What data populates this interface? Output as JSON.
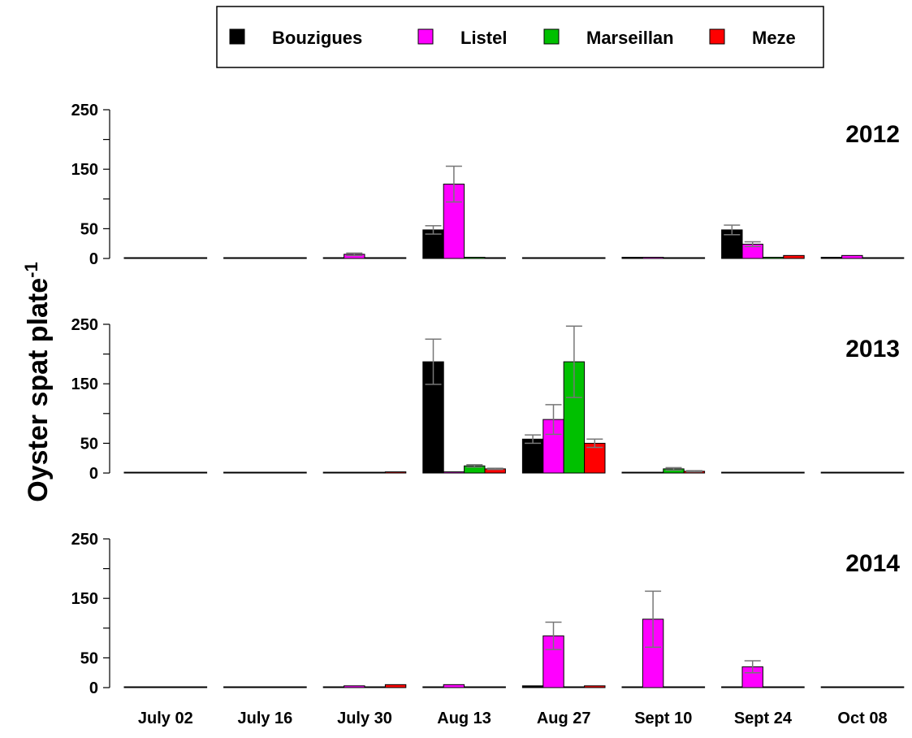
{
  "chart_data": {
    "type": "bar",
    "ylabel": "Oyster spat plate",
    "ylabel_superscript": "-1",
    "categories": [
      "July 02",
      "July 16",
      "July 30",
      "Aug 13",
      "Aug 27",
      "Sept 10",
      "Sept 24",
      "Oct 08"
    ],
    "legend": {
      "placement": "top",
      "entries": [
        {
          "name": "Bouzigues",
          "color": "#000000"
        },
        {
          "name": "Listel",
          "color": "#ff00ff"
        },
        {
          "name": "Marseillan",
          "color": "#00c000"
        },
        {
          "name": "Meze",
          "color": "#ff0000"
        }
      ]
    },
    "yticks": [
      "0",
      "50",
      "150",
      "250"
    ],
    "ylim": [
      0,
      250
    ],
    "panels": [
      {
        "year": "2012",
        "series": [
          {
            "name": "Bouzigues",
            "values": [
              0,
              0,
              0,
              48,
              0,
              2,
              48,
              2
            ],
            "errors": [
              0,
              0,
              0,
              7,
              0,
              0,
              8,
              0
            ]
          },
          {
            "name": "Listel",
            "values": [
              0,
              0,
              7,
              125,
              0,
              2,
              24,
              5
            ],
            "errors": [
              0,
              0,
              2,
              30,
              0,
              0,
              4,
              0
            ]
          },
          {
            "name": "Marseillan",
            "values": [
              0,
              0,
              0,
              2,
              0,
              0,
              2,
              0
            ],
            "errors": [
              0,
              0,
              0,
              0,
              0,
              0,
              0,
              0
            ]
          },
          {
            "name": "Meze",
            "values": [
              0,
              0,
              0,
              0,
              0,
              0,
              5,
              0
            ],
            "errors": [
              0,
              0,
              0,
              0,
              0,
              0,
              0,
              0
            ]
          }
        ]
      },
      {
        "year": "2013",
        "series": [
          {
            "name": "Bouzigues",
            "values": [
              0,
              0,
              1,
              187,
              57,
              0,
              0,
              0
            ],
            "errors": [
              0,
              0,
              0,
              38,
              7,
              0,
              0,
              0
            ]
          },
          {
            "name": "Listel",
            "values": [
              0,
              0,
              0,
              2,
              90,
              0,
              0,
              0
            ],
            "errors": [
              0,
              0,
              0,
              0,
              25,
              0,
              0,
              0
            ]
          },
          {
            "name": "Marseillan",
            "values": [
              0,
              0,
              0,
              12,
              187,
              7,
              0,
              0
            ],
            "errors": [
              0,
              0,
              0,
              2,
              60,
              2,
              0,
              0
            ]
          },
          {
            "name": "Meze",
            "values": [
              0,
              0,
              2,
              7,
              50,
              3,
              0,
              0
            ],
            "errors": [
              0,
              0,
              0,
              1,
              7,
              1,
              0,
              0
            ]
          }
        ]
      },
      {
        "year": "2014",
        "series": [
          {
            "name": "Bouzigues",
            "values": [
              1,
              0,
              0,
              0,
              3,
              0,
              0,
              0
            ],
            "errors": [
              0,
              0,
              0,
              0,
              0,
              0,
              0,
              0
            ]
          },
          {
            "name": "Listel",
            "values": [
              1,
              0,
              3,
              5,
              87,
              115,
              35,
              0
            ],
            "errors": [
              0,
              0,
              0,
              0,
              23,
              47,
              10,
              0
            ]
          },
          {
            "name": "Marseillan",
            "values": [
              1,
              0,
              0,
              1,
              0,
              0,
              0,
              0
            ],
            "errors": [
              0,
              0,
              0,
              0,
              0,
              0,
              0,
              0
            ]
          },
          {
            "name": "Meze",
            "values": [
              0,
              0,
              5,
              0,
              3,
              0,
              0,
              0
            ],
            "errors": [
              0,
              0,
              0,
              0,
              0,
              0,
              0,
              0
            ]
          }
        ]
      }
    ]
  }
}
